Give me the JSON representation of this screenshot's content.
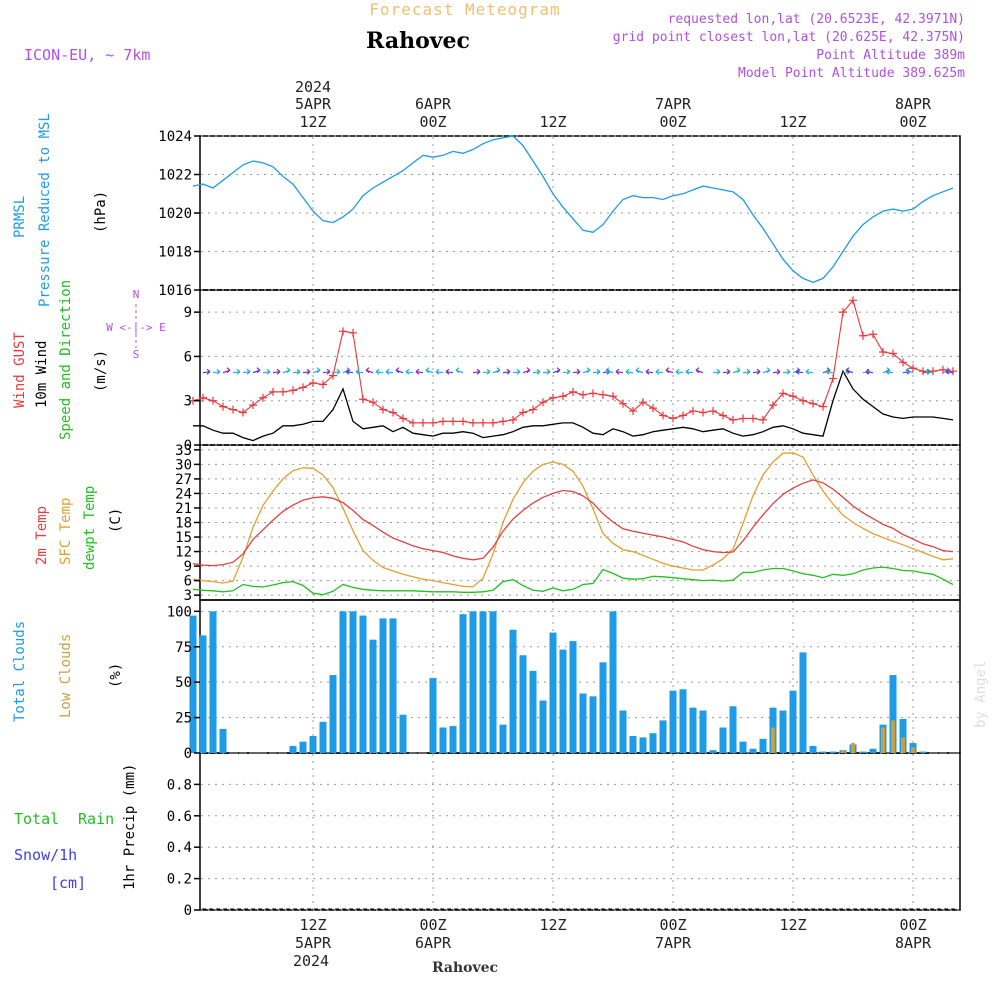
{
  "header": {
    "title": "Forecast Meteogram",
    "location": "Rahovec",
    "model": "ICON-EU, ~ 7km",
    "requested": "requested lon,lat (20.6523E, 42.3971N)",
    "gridpoint": "grid point closest lon,lat (20.625E, 42.375N)",
    "altitude": "Point Altitude 389m",
    "model_altitude": "Model Point Altitude 389.625m",
    "credit": "by Angel",
    "footer": "Rahovec",
    "year": "2024"
  },
  "time_axis": {
    "top": [
      {
        "line1": "5APR",
        "line2": "12Z",
        "hour": 12
      },
      {
        "line1": "6APR",
        "line2": "00Z",
        "hour": 24
      },
      {
        "line1": "",
        "line2": "12Z",
        "hour": 36
      },
      {
        "line1": "7APR",
        "line2": "00Z",
        "hour": 48
      },
      {
        "line1": "",
        "line2": "12Z",
        "hour": 60
      },
      {
        "line1": "8APR",
        "line2": "00Z",
        "hour": 72
      }
    ],
    "bottom": [
      {
        "line1": "12Z",
        "line2": "5APR",
        "hour": 12
      },
      {
        "line1": "00Z",
        "line2": "6APR",
        "hour": 24
      },
      {
        "line1": "12Z",
        "line2": "",
        "hour": 36
      },
      {
        "line1": "00Z",
        "line2": "7APR",
        "hour": 48
      },
      {
        "line1": "12Z",
        "line2": "",
        "hour": 60
      },
      {
        "line1": "00Z",
        "line2": "8APR",
        "hour": 72
      }
    ]
  },
  "panel_labels": {
    "pressure": {
      "name1": "PRMSL",
      "name2": "Pressure Reduced to MSL",
      "unit": "(hPa)"
    },
    "wind": {
      "gust": "Wind GUST",
      "wind10": "10m Wind",
      "dir": "Speed and Direction",
      "unit": "(m/s)",
      "compass": "W <-|-> E",
      "north": "N",
      "south": "S"
    },
    "temp": {
      "t2m": "2m Temp",
      "sfc": "SFC Temp",
      "dewpt": "dewpt Temp",
      "unit": "(C)"
    },
    "clouds": {
      "total": "Total Clouds",
      "low": "Low Clouds",
      "unit": "(%)"
    },
    "precip": {
      "total": "Total",
      "rain": "Rain",
      "snow": "Snow/1h",
      "snowunit": "[cm]",
      "name": "1hr Precip (mm)"
    }
  },
  "colors": {
    "pressure": "#1e9be6",
    "gust": "#e8383c",
    "wind10": "#000000",
    "t2m": "#e04040",
    "sfc": "#e0a030",
    "dewpt": "#20c020",
    "cloud_total": "#1e9be6",
    "cloud_low": "#c8a040",
    "header_purple": "#b050e0",
    "title_orange": "#f0c070",
    "rain": "#20c020",
    "snow": "#4040e0"
  },
  "chart_data": [
    {
      "type": "line",
      "name": "PRMSL",
      "ylabel": "(hPa)",
      "ylim": [
        1016,
        1024
      ],
      "yticks": [
        1016,
        1018,
        1020,
        1022,
        1024
      ],
      "x": [
        0,
        1,
        2,
        3,
        4,
        5,
        6,
        7,
        8,
        9,
        10,
        11,
        12,
        13,
        14,
        15,
        16,
        17,
        18,
        19,
        20,
        21,
        22,
        23,
        24,
        25,
        26,
        27,
        28,
        29,
        30,
        31,
        32,
        33,
        34,
        35,
        36,
        37,
        38,
        39,
        40,
        41,
        42,
        43,
        44,
        45,
        46,
        47,
        48,
        49,
        50,
        51,
        52,
        53,
        54,
        55,
        56,
        57,
        58,
        59,
        60,
        61,
        62,
        63,
        64,
        65,
        66,
        67,
        68,
        69,
        70,
        71,
        72,
        73,
        74,
        75,
        76
      ],
      "series": [
        {
          "values": [
            1021.4,
            1021.5,
            1021.3,
            1021.7,
            1022.1,
            1022.5,
            1022.7,
            1022.6,
            1022.4,
            1021.9,
            1021.5,
            1020.8,
            1020.1,
            1019.6,
            1019.5,
            1019.8,
            1020.2,
            1020.9,
            1021.3,
            1021.6,
            1021.9,
            1022.2,
            1022.6,
            1023.0,
            1022.9,
            1023.0,
            1023.2,
            1023.1,
            1023.3,
            1023.6,
            1023.8,
            1023.9,
            1024.0,
            1023.5,
            1022.7,
            1021.9,
            1021.0,
            1020.3,
            1019.7,
            1019.1,
            1019.0,
            1019.4,
            1020.1,
            1020.7,
            1020.9,
            1020.8,
            1020.8,
            1020.7,
            1020.9,
            1021.0,
            1021.2,
            1021.4,
            1021.3,
            1021.2,
            1021.1,
            1020.7,
            1019.9,
            1019.2,
            1018.4,
            1017.6,
            1017.0,
            1016.6,
            1016.4,
            1016.6,
            1017.2,
            1018.0,
            1018.8,
            1019.4,
            1019.8,
            1020.1,
            1020.2,
            1020.1,
            1020.2,
            1020.6,
            1020.9,
            1021.1,
            1021.3
          ]
        }
      ]
    },
    {
      "type": "line",
      "name": "wind",
      "ylabel": "(m/s)",
      "ylim": [
        0,
        10.5
      ],
      "yticks": [
        0,
        3,
        6,
        9
      ],
      "x": [
        0,
        1,
        2,
        3,
        4,
        5,
        6,
        7,
        8,
        9,
        10,
        11,
        12,
        13,
        14,
        15,
        16,
        17,
        18,
        19,
        20,
        21,
        22,
        23,
        24,
        25,
        26,
        27,
        28,
        29,
        30,
        31,
        32,
        33,
        34,
        35,
        36,
        37,
        38,
        39,
        40,
        41,
        42,
        43,
        44,
        45,
        46,
        47,
        48,
        49,
        50,
        51,
        52,
        53,
        54,
        55,
        56,
        57,
        58,
        59,
        60,
        61,
        62,
        63,
        64,
        65,
        66,
        67,
        68,
        69,
        70,
        71,
        72,
        73,
        74,
        75,
        76
      ],
      "series": [
        {
          "name": "Wind GUST",
          "values": [
            3.0,
            3.2,
            3.0,
            2.6,
            2.4,
            2.2,
            2.7,
            3.2,
            3.6,
            3.6,
            3.7,
            3.9,
            4.2,
            4.1,
            4.7,
            7.7,
            7.6,
            3.1,
            2.9,
            2.4,
            2.2,
            1.8,
            1.5,
            1.5,
            1.5,
            1.6,
            1.6,
            1.6,
            1.5,
            1.5,
            1.5,
            1.6,
            1.7,
            2.2,
            2.4,
            2.9,
            3.2,
            3.3,
            3.6,
            3.4,
            3.5,
            3.4,
            3.3,
            2.8,
            2.3,
            2.9,
            2.5,
            2.0,
            1.8,
            2.0,
            2.3,
            2.2,
            2.3,
            2.0,
            1.7,
            1.8,
            1.8,
            1.7,
            2.7,
            3.5,
            3.3,
            3.0,
            2.8,
            2.6,
            4.5,
            9.0,
            9.8,
            7.4,
            7.5,
            6.3,
            6.2,
            5.6,
            5.2,
            5.0,
            5.0,
            5.1,
            5.0
          ]
        },
        {
          "name": "10m Wind",
          "values": [
            1.3,
            1.3,
            1.0,
            0.8,
            0.8,
            0.5,
            0.3,
            0.6,
            0.8,
            1.3,
            1.3,
            1.4,
            1.6,
            1.6,
            2.4,
            3.8,
            1.6,
            1.1,
            1.2,
            1.3,
            0.9,
            1.2,
            0.8,
            0.7,
            0.6,
            0.8,
            0.8,
            0.9,
            0.8,
            0.5,
            0.6,
            0.7,
            0.9,
            1.2,
            1.3,
            1.3,
            1.4,
            1.5,
            1.5,
            1.2,
            0.8,
            0.7,
            1.1,
            0.9,
            0.6,
            0.7,
            0.9,
            1.0,
            1.1,
            1.2,
            1.1,
            0.9,
            1.0,
            1.1,
            0.8,
            0.6,
            0.7,
            0.9,
            1.2,
            1.3,
            1.1,
            0.8,
            0.7,
            0.6,
            3.0,
            5.0,
            3.8,
            3.1,
            2.6,
            2.1,
            1.9,
            1.8,
            1.9,
            1.9,
            1.9,
            1.8,
            1.7
          ]
        }
      ]
    },
    {
      "type": "line",
      "name": "temperature",
      "ylabel": "(C)",
      "ylim": [
        2,
        34
      ],
      "yticks": [
        3,
        6,
        9,
        12,
        15,
        18,
        21,
        24,
        27,
        30,
        33
      ],
      "x": [
        0,
        1,
        2,
        3,
        4,
        5,
        6,
        7,
        8,
        9,
        10,
        11,
        12,
        13,
        14,
        15,
        16,
        17,
        18,
        19,
        20,
        21,
        22,
        23,
        24,
        25,
        26,
        27,
        28,
        29,
        30,
        31,
        32,
        33,
        34,
        35,
        36,
        37,
        38,
        39,
        40,
        41,
        42,
        43,
        44,
        45,
        46,
        47,
        48,
        49,
        50,
        51,
        52,
        53,
        54,
        55,
        56,
        57,
        58,
        59,
        60,
        61,
        62,
        63,
        64,
        65,
        66,
        67,
        68,
        69,
        70,
        71,
        72,
        73,
        74,
        75,
        76
      ],
      "series": [
        {
          "name": "2m Temp",
          "values": [
            9.5,
            9.2,
            9.1,
            9.3,
            9.8,
            11.5,
            14.5,
            16.5,
            18.5,
            20.3,
            21.6,
            22.6,
            23.1,
            23.3,
            23.0,
            22.1,
            20.5,
            18.6,
            17.4,
            16.0,
            14.8,
            14.0,
            13.2,
            12.6,
            12.2,
            11.8,
            11.1,
            10.6,
            10.3,
            10.6,
            12.9,
            16.2,
            18.7,
            20.5,
            22.0,
            23.2,
            24.0,
            24.6,
            24.4,
            23.5,
            22.0,
            19.8,
            18.1,
            16.7,
            16.2,
            15.8,
            15.4,
            15.0,
            14.5,
            14.0,
            13.1,
            12.4,
            12.0,
            11.8,
            11.9,
            14.2,
            17.0,
            19.6,
            21.9,
            23.8,
            25.1,
            26.1,
            26.8,
            26.2,
            24.9,
            23.2,
            21.4,
            20.0,
            18.8,
            17.6,
            16.8,
            15.5,
            14.6,
            13.6,
            13.0,
            12.2,
            12.0
          ]
        },
        {
          "name": "SFC Temp",
          "values": [
            6.3,
            6.0,
            5.8,
            5.5,
            5.9,
            10.8,
            17.0,
            21.5,
            24.5,
            27.0,
            28.7,
            29.3,
            29.2,
            27.8,
            25.2,
            21.0,
            16.3,
            12.2,
            10.2,
            8.7,
            8.0,
            7.3,
            6.8,
            6.3,
            6.0,
            5.6,
            5.2,
            4.8,
            4.7,
            6.5,
            11.5,
            18.0,
            22.8,
            26.2,
            28.6,
            30.0,
            30.5,
            30.0,
            28.6,
            25.5,
            20.8,
            15.7,
            13.7,
            12.4,
            12.0,
            11.2,
            10.4,
            9.6,
            9.0,
            8.6,
            8.2,
            8.2,
            9.2,
            10.5,
            12.5,
            17.8,
            23.5,
            27.8,
            30.5,
            32.3,
            32.4,
            31.5,
            27.8,
            24.5,
            21.8,
            19.5,
            18.0,
            16.8,
            15.7,
            14.9,
            14.1,
            13.4,
            12.6,
            11.8,
            11.0,
            10.3,
            10.5
          ]
        },
        {
          "name": "dewpt Temp",
          "values": [
            4.2,
            4.0,
            3.9,
            3.7,
            3.9,
            5.2,
            4.8,
            4.7,
            5.1,
            5.6,
            5.8,
            5.0,
            3.4,
            3.1,
            3.8,
            5.2,
            4.6,
            4.2,
            4.0,
            3.9,
            3.9,
            3.9,
            3.9,
            3.8,
            3.7,
            3.7,
            3.7,
            3.6,
            3.6,
            3.7,
            4.0,
            5.8,
            6.2,
            5.0,
            4.0,
            3.8,
            4.5,
            3.9,
            4.2,
            5.2,
            5.4,
            8.3,
            7.5,
            6.5,
            6.3,
            6.4,
            6.9,
            6.8,
            6.6,
            6.4,
            6.2,
            6.0,
            6.1,
            5.9,
            6.1,
            7.7,
            7.7,
            8.2,
            8.5,
            8.5,
            8.0,
            7.4,
            7.1,
            6.6,
            7.3,
            7.1,
            7.4,
            8.2,
            8.6,
            8.8,
            8.5,
            8.1,
            8.0,
            7.6,
            7.3,
            6.3,
            5.2
          ]
        }
      ]
    },
    {
      "type": "bar",
      "name": "clouds",
      "ylabel": "(%)",
      "ylim": [
        0,
        108
      ],
      "yticks": [
        0,
        25,
        50,
        75,
        100
      ],
      "x": [
        0,
        1,
        2,
        3,
        4,
        5,
        6,
        7,
        8,
        9,
        10,
        11,
        12,
        13,
        14,
        15,
        16,
        17,
        18,
        19,
        20,
        21,
        22,
        23,
        24,
        25,
        26,
        27,
        28,
        29,
        30,
        31,
        32,
        33,
        34,
        35,
        36,
        37,
        38,
        39,
        40,
        41,
        42,
        43,
        44,
        45,
        46,
        47,
        48,
        49,
        50,
        51,
        52,
        53,
        54,
        55,
        56,
        57,
        58,
        59,
        60,
        61,
        62,
        63,
        64,
        65,
        66,
        67,
        68,
        69,
        70,
        71,
        72,
        73,
        74,
        75,
        76
      ],
      "series": [
        {
          "name": "Total Clouds",
          "values": [
            97,
            83,
            100,
            17,
            0,
            0,
            0,
            0,
            0,
            0,
            5,
            8,
            12,
            22,
            55,
            100,
            100,
            97,
            80,
            95,
            95,
            27,
            0,
            0,
            53,
            18,
            19,
            98,
            100,
            100,
            100,
            20,
            87,
            69,
            58,
            37,
            85,
            73,
            79,
            42,
            40,
            64,
            100,
            30,
            12,
            11,
            14,
            23,
            44,
            45,
            32,
            30,
            2,
            18,
            33,
            8,
            3,
            10,
            32,
            30,
            44,
            71,
            5,
            1,
            1,
            2,
            6,
            1,
            3,
            20,
            55,
            24,
            7,
            1,
            0,
            0,
            0
          ]
        },
        {
          "name": "Low Clouds",
          "values": [
            0,
            0,
            0,
            0,
            0,
            0,
            0,
            0,
            0,
            0,
            0,
            0,
            0,
            0,
            0,
            0,
            0,
            0,
            0,
            0,
            0,
            0,
            0,
            0,
            0,
            0,
            0,
            0,
            0,
            0,
            0,
            0,
            0,
            0,
            0,
            0,
            0,
            0,
            0,
            0,
            0,
            0,
            0,
            0,
            0,
            0,
            0,
            0,
            0,
            0,
            0,
            0,
            0,
            0,
            0,
            0,
            0,
            0,
            18,
            0,
            0,
            0,
            0,
            0,
            0,
            2,
            7,
            0,
            0,
            18,
            23,
            11,
            4,
            0,
            0,
            0,
            0
          ]
        }
      ]
    },
    {
      "type": "bar",
      "name": "precipitation",
      "ylabel": "1hr Precip (mm)",
      "ylim": [
        0,
        1.0
      ],
      "yticks": [
        0,
        0.2,
        0.4,
        0.6,
        0.8
      ],
      "x": [
        0,
        12,
        24,
        36,
        48,
        60,
        72
      ],
      "series": [
        {
          "name": "Total Rain",
          "values": [
            0,
            0,
            0,
            0,
            0,
            0,
            0
          ]
        }
      ]
    }
  ]
}
